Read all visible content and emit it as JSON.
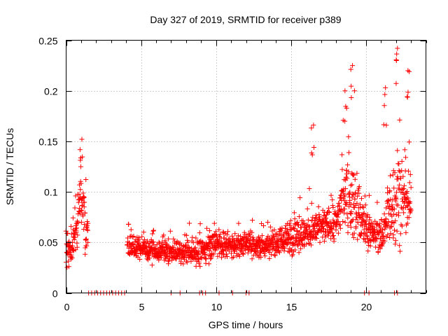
{
  "chart_data": {
    "type": "scatter",
    "title": "Day 327 of 2019, SRMTID for receiver p389",
    "xlabel": "GPS time / hours",
    "ylabel": "SRMTID / TECUs",
    "xlim": [
      0,
      24
    ],
    "ylim": [
      0,
      0.25
    ],
    "xticks": [
      0,
      5,
      10,
      15,
      20
    ],
    "xtick_labels": [
      "0",
      "5",
      "10",
      "15",
      "20"
    ],
    "yticks": [
      0,
      0.05,
      0.1,
      0.15,
      0.2,
      0.25
    ],
    "ytick_labels": [
      "0",
      "0.05",
      "0.1",
      "0.15",
      "0.2",
      "0.25"
    ],
    "grid": true,
    "marker": "plus",
    "color": "#ff0000",
    "series": [
      {
        "name": "SRMTID",
        "x_start": 0.0,
        "x_end": 23.0,
        "step": 0.025,
        "gaps": [
          [
            1.45,
            4.05
          ]
        ],
        "zero_points_x": [
          1.5,
          1.7,
          1.9,
          2.1,
          2.3,
          2.5,
          2.7,
          2.9,
          3.1,
          3.3,
          3.5,
          3.7,
          3.9,
          7.0,
          7.6,
          8.9,
          9.1,
          9.3,
          10.2,
          11.1,
          12.0,
          12.2,
          19.9,
          20.2,
          21.9,
          22.1
        ],
        "envelope_x": [
          0.0,
          0.3,
          0.6,
          0.9,
          1.1,
          1.3,
          4.1,
          5.0,
          6.0,
          7.0,
          8.0,
          9.0,
          10.0,
          11.0,
          12.0,
          13.0,
          14.0,
          15.0,
          16.0,
          17.0,
          18.0,
          18.6,
          19.2,
          19.8,
          20.3,
          21.0,
          21.6,
          22.2,
          23.0
        ],
        "envelope_center": [
          0.045,
          0.04,
          0.055,
          0.085,
          0.09,
          0.06,
          0.045,
          0.045,
          0.04,
          0.04,
          0.04,
          0.04,
          0.05,
          0.045,
          0.05,
          0.045,
          0.05,
          0.055,
          0.06,
          0.065,
          0.07,
          0.1,
          0.09,
          0.07,
          0.06,
          0.055,
          0.08,
          0.1,
          0.085
        ],
        "envelope_spread": [
          0.03,
          0.025,
          0.03,
          0.04,
          0.04,
          0.04,
          0.02,
          0.018,
          0.016,
          0.018,
          0.018,
          0.022,
          0.025,
          0.022,
          0.02,
          0.02,
          0.025,
          0.028,
          0.035,
          0.03,
          0.03,
          0.06,
          0.06,
          0.04,
          0.025,
          0.03,
          0.06,
          0.08,
          0.05
        ],
        "peaks": [
          {
            "x": 1.05,
            "y": 0.152
          },
          {
            "x": 16.5,
            "y": 0.166
          },
          {
            "x": 18.6,
            "y": 0.2
          },
          {
            "x": 19.1,
            "y": 0.225
          },
          {
            "x": 21.3,
            "y": 0.203
          },
          {
            "x": 22.1,
            "y": 0.242
          },
          {
            "x": 22.8,
            "y": 0.22
          }
        ]
      }
    ]
  }
}
